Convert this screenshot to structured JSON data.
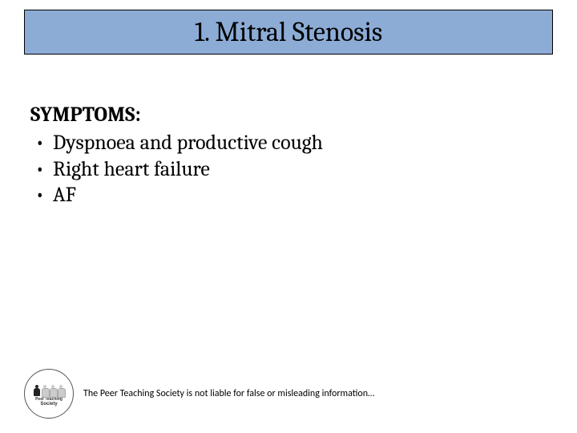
{
  "title": "1. Mitral Stenosis",
  "heading": "SYMPTOMS:",
  "bullets": [
    "Dyspnoea and productive cough",
    "Right heart failure",
    "AF"
  ],
  "logo": {
    "line1": "Peer Teaching",
    "line2": "Society"
  },
  "disclaimer": "The Peer Teaching Society is not liable for false or misleading information…",
  "colors": {
    "title_bg": "#8cacd6",
    "title_border": "#000000",
    "page_bg": "#ffffff",
    "text": "#000000"
  },
  "typography": {
    "title_fontsize": 34,
    "body_fontsize": 26,
    "disclaimer_fontsize": 12,
    "title_family": "Cambria",
    "disclaimer_family": "Calibri"
  }
}
